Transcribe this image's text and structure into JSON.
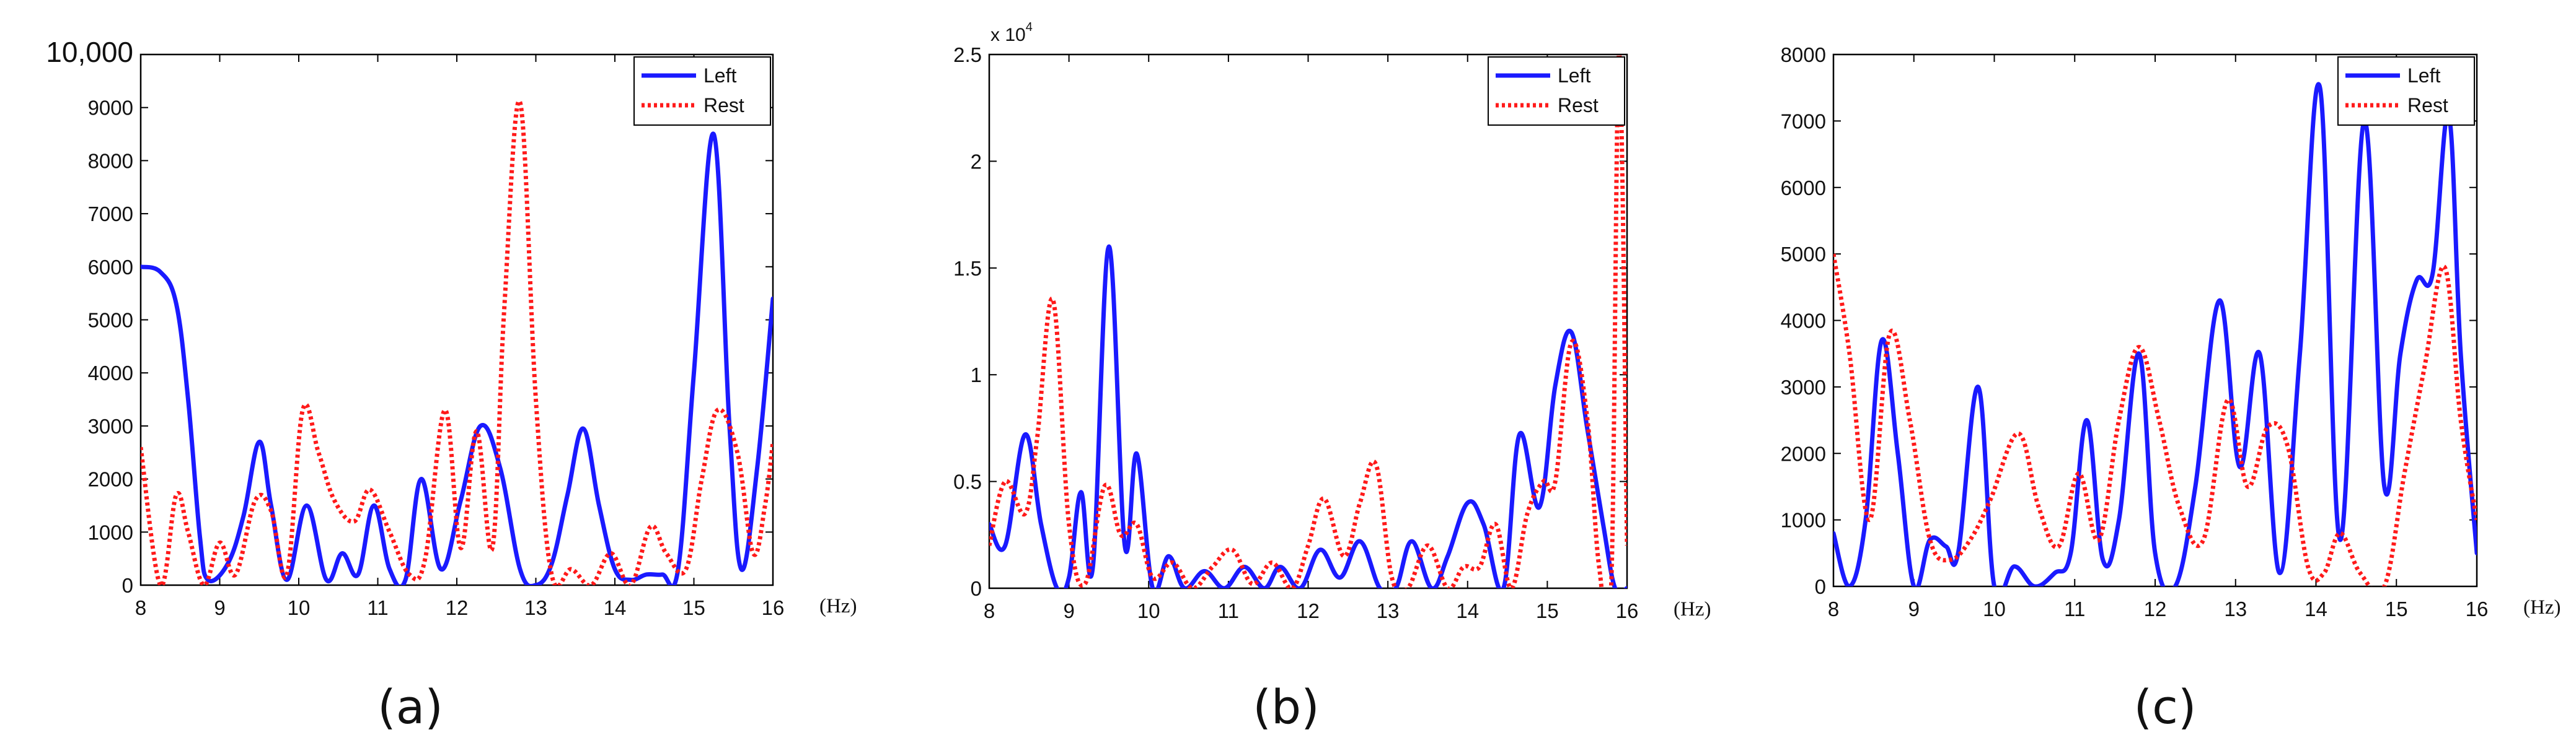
{
  "chart_data": [
    {
      "id": "a",
      "type": "line",
      "caption": "(a)",
      "x_unit": "(Hz)",
      "xlim": [
        8,
        16
      ],
      "ylim": [
        0,
        10000
      ],
      "x_ticks": [
        8,
        9,
        10,
        11,
        12,
        13,
        14,
        15,
        16
      ],
      "y_ticks": [
        {
          "value": 0,
          "label": "0"
        },
        {
          "value": 1000,
          "label": "1000"
        },
        {
          "value": 2000,
          "label": "2000"
        },
        {
          "value": 3000,
          "label": "3000"
        },
        {
          "value": 4000,
          "label": "4000"
        },
        {
          "value": 5000,
          "label": "5000"
        },
        {
          "value": 6000,
          "label": "6000"
        },
        {
          "value": 7000,
          "label": "7000"
        },
        {
          "value": 8000,
          "label": "8000"
        },
        {
          "value": 9000,
          "label": "9000"
        },
        {
          "value": 10000,
          "label": "10,000"
        }
      ],
      "legend": {
        "position": "top-right"
      },
      "series": [
        {
          "name": "Left",
          "color": "#1a1aff",
          "dash": "solid",
          "x": [
            8,
            8.25,
            8.45,
            8.6,
            8.75,
            8.85,
            9.1,
            9.3,
            9.5,
            9.65,
            9.85,
            10.1,
            10.35,
            10.55,
            10.75,
            10.95,
            11.15,
            11.35,
            11.55,
            11.8,
            12.05,
            12.3,
            12.55,
            12.8,
            13.0,
            13.2,
            13.4,
            13.6,
            13.8,
            14.0,
            14.2,
            14.4,
            14.6,
            14.8,
            15.0,
            15.25,
            15.45,
            15.6,
            15.8,
            16.0
          ],
          "y": [
            6000,
            5900,
            5300,
            3500,
            900,
            100,
            400,
            1300,
            2700,
            1500,
            100,
            1500,
            100,
            600,
            200,
            1500,
            300,
            100,
            2000,
            300,
            1600,
            3000,
            2200,
            300,
            0,
            400,
            1700,
            2950,
            1500,
            300,
            100,
            200,
            200,
            300,
            4000,
            8500,
            3000,
            300,
            2200,
            5400
          ]
        },
        {
          "name": "Rest",
          "color": "#ff1a1a",
          "dash": "dotted",
          "x": [
            8,
            8.25,
            8.45,
            8.6,
            8.8,
            9.0,
            9.2,
            9.45,
            9.65,
            9.85,
            10.05,
            10.25,
            10.45,
            10.7,
            10.9,
            11.15,
            11.4,
            11.6,
            11.85,
            12.05,
            12.25,
            12.45,
            12.6,
            12.8,
            13.0,
            13.2,
            13.45,
            13.7,
            13.95,
            14.2,
            14.45,
            14.65,
            14.9,
            15.1,
            15.3,
            15.55,
            15.75,
            15.9,
            16.0
          ],
          "y": [
            2600,
            0,
            1700,
            1000,
            0,
            800,
            200,
            1600,
            1400,
            200,
            3300,
            2500,
            1600,
            1200,
            1800,
            1000,
            200,
            500,
            3300,
            700,
            2900,
            700,
            5200,
            9100,
            3500,
            200,
            300,
            0,
            600,
            0,
            1100,
            600,
            300,
            2000,
            3300,
            2500,
            600,
            1500,
            2700
          ]
        }
      ]
    },
    {
      "id": "b",
      "type": "line",
      "caption": "(b)",
      "x_unit": "(Hz)",
      "exponent": {
        "base": "x 10",
        "power": "4"
      },
      "xlim": [
        8,
        16
      ],
      "ylim": [
        0,
        2.5
      ],
      "x_ticks": [
        8,
        9,
        10,
        11,
        12,
        13,
        14,
        15,
        16
      ],
      "y_ticks": [
        {
          "value": 0,
          "label": "0"
        },
        {
          "value": 0.5,
          "label": "0.5"
        },
        {
          "value": 1,
          "label": "1"
        },
        {
          "value": 1.5,
          "label": "1.5"
        },
        {
          "value": 2,
          "label": "2"
        },
        {
          "value": 2.5,
          "label": "2.5"
        }
      ],
      "legend": {
        "position": "top-right"
      },
      "series": [
        {
          "name": "Left",
          "color": "#1a1aff",
          "dash": "solid",
          "x": [
            8,
            8.2,
            8.45,
            8.65,
            8.85,
            9.0,
            9.15,
            9.3,
            9.5,
            9.7,
            9.85,
            10.05,
            10.25,
            10.45,
            10.7,
            10.95,
            11.2,
            11.45,
            11.65,
            11.9,
            12.15,
            12.4,
            12.65,
            12.9,
            13.1,
            13.3,
            13.55,
            13.75,
            14.0,
            14.2,
            14.45,
            14.65,
            14.9,
            15.1,
            15.3,
            15.5,
            15.7,
            15.85,
            16.0
          ],
          "y": [
            0.3,
            0.2,
            0.72,
            0.3,
            0,
            0.05,
            0.45,
            0.1,
            1.6,
            0.2,
            0.63,
            0,
            0.15,
            0,
            0.08,
            0,
            0.1,
            0,
            0.1,
            0,
            0.18,
            0.05,
            0.22,
            0,
            0,
            0.22,
            0,
            0.15,
            0.4,
            0.3,
            0,
            0.72,
            0.38,
            0.95,
            1.2,
            0.75,
            0.3,
            0,
            0
          ]
        },
        {
          "name": "Rest",
          "color": "#ff1a1a",
          "dash": "dotted",
          "x": [
            8,
            8.2,
            8.45,
            8.6,
            8.8,
            9.0,
            9.2,
            9.45,
            9.65,
            9.85,
            10.05,
            10.3,
            10.55,
            10.8,
            11.05,
            11.3,
            11.55,
            11.8,
            12.0,
            12.2,
            12.45,
            12.65,
            12.85,
            13.05,
            13.25,
            13.5,
            13.75,
            13.95,
            14.15,
            14.35,
            14.55,
            14.75,
            14.95,
            15.1,
            15.3,
            15.5,
            15.65,
            15.8,
            15.9,
            16.0
          ],
          "y": [
            0.2,
            0.5,
            0.35,
            0.7,
            1.35,
            0.3,
            0.02,
            0.48,
            0.25,
            0.3,
            0.05,
            0.12,
            0,
            0.1,
            0.18,
            0.02,
            0.12,
            0,
            0.2,
            0.42,
            0.15,
            0.4,
            0.58,
            0.05,
            0,
            0.2,
            0,
            0.1,
            0.1,
            0.3,
            0,
            0.35,
            0.5,
            0.5,
            1.15,
            0.8,
            0.1,
            0,
            2.5,
            0.2
          ]
        }
      ]
    },
    {
      "id": "c",
      "type": "line",
      "caption": "(c)",
      "x_unit": "(Hz)",
      "xlim": [
        8,
        16
      ],
      "ylim": [
        0,
        8000
      ],
      "x_ticks": [
        8,
        9,
        10,
        11,
        12,
        13,
        14,
        15,
        16
      ],
      "y_ticks": [
        {
          "value": 0,
          "label": "0"
        },
        {
          "value": 1000,
          "label": "1000"
        },
        {
          "value": 2000,
          "label": "2000"
        },
        {
          "value": 3000,
          "label": "3000"
        },
        {
          "value": 4000,
          "label": "4000"
        },
        {
          "value": 5000,
          "label": "5000"
        },
        {
          "value": 6000,
          "label": "6000"
        },
        {
          "value": 7000,
          "label": "7000"
        },
        {
          "value": 8000,
          "label": "8000"
        }
      ],
      "legend": {
        "position": "top-right"
      },
      "series": [
        {
          "name": "Left",
          "color": "#1a1aff",
          "dash": "solid",
          "x": [
            8,
            8.2,
            8.4,
            8.6,
            8.8,
            9.0,
            9.2,
            9.4,
            9.55,
            9.8,
            10.0,
            10.25,
            10.5,
            10.75,
            10.95,
            11.15,
            11.35,
            11.55,
            11.8,
            12.0,
            12.25,
            12.5,
            12.8,
            13.05,
            13.3,
            13.55,
            13.8,
            14.05,
            14.3,
            14.6,
            14.85,
            15.05,
            15.25,
            15.45,
            15.65,
            15.8,
            16.0
          ],
          "y": [
            800,
            0,
            1000,
            3700,
            2000,
            0,
            700,
            600,
            500,
            3000,
            0,
            300,
            0,
            200,
            500,
            2500,
            400,
            1000,
            3500,
            500,
            0,
            1500,
            4300,
            1800,
            3500,
            200,
            3500,
            7500,
            700,
            7000,
            1500,
            3500,
            4600,
            4700,
            7100,
            3500,
            500
          ]
        },
        {
          "name": "Rest",
          "color": "#ff1a1a",
          "dash": "dotted",
          "x": [
            8,
            8.2,
            8.45,
            8.7,
            8.95,
            9.2,
            9.45,
            9.7,
            9.95,
            10.3,
            10.55,
            10.8,
            11.05,
            11.3,
            11.55,
            11.8,
            12.05,
            12.3,
            12.6,
            12.9,
            13.15,
            13.4,
            13.65,
            13.9,
            14.1,
            14.3,
            14.55,
            14.85,
            15.1,
            15.35,
            15.6,
            15.8,
            16.0
          ],
          "y": [
            5000,
            3500,
            1000,
            3800,
            2500,
            700,
            400,
            700,
            1300,
            2300,
            1200,
            600,
            1700,
            700,
            2500,
            3600,
            2500,
            1200,
            700,
            2800,
            1500,
            2400,
            2100,
            300,
            200,
            800,
            200,
            0,
            1700,
            3300,
            4800,
            2500,
            1000
          ]
        }
      ]
    }
  ]
}
